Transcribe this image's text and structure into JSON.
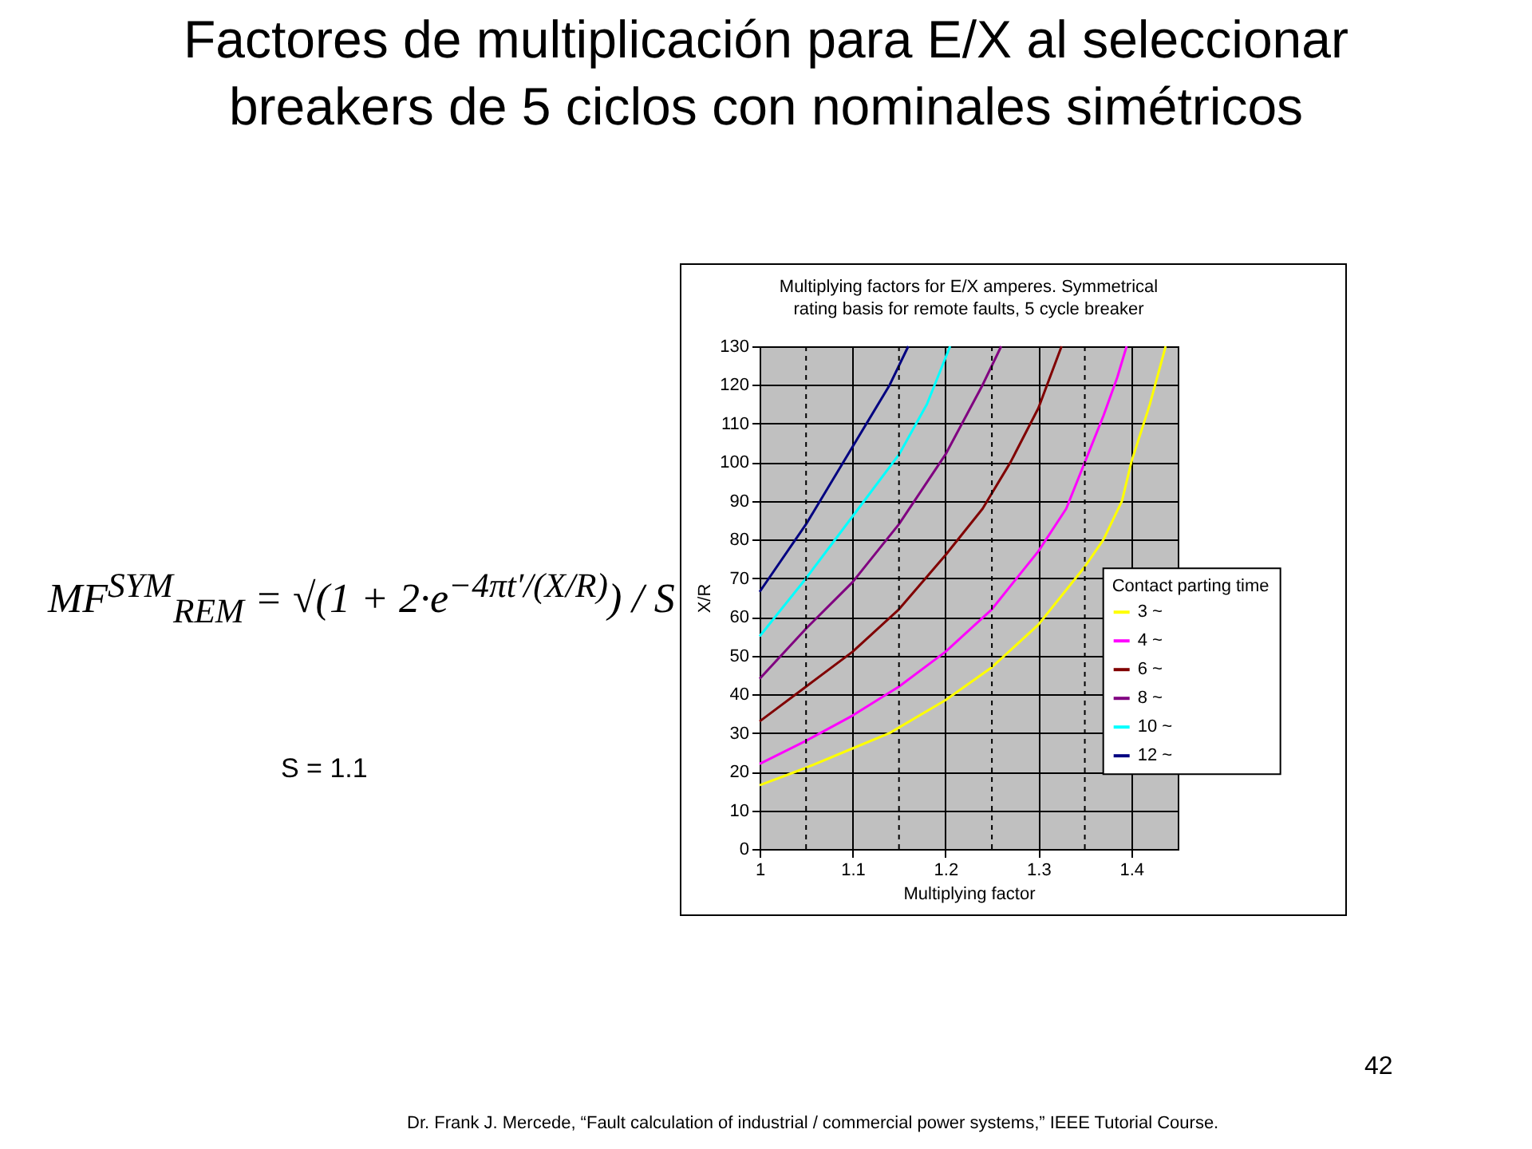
{
  "chart_data": {
    "type": "line",
    "title": "Factores de multiplicación para E/X al seleccionar breakers de 5 ciclos con nominales simétricos",
    "subtitle": "Multiplying factors for E/X amperes. Symmetrical rating basis for remote faults, 5 cycle breaker",
    "xlabel": "Multiplying factor",
    "ylabel": "X/R",
    "legend_title": "Contact parting time",
    "annotations": [
      "MF$^{SYM}$$_{REM}$ = √(1 + 2·e$^{−4πt′/(X/R)}$) / S",
      "S = 1.1",
      "42",
      "Dr. Frank J. Mercede, “Fault calculation of industrial / commercial power systems,” IEEE Tutorial Course."
    ],
    "xlim": [
      1,
      1.45
    ],
    "ylim": [
      0,
      130
    ],
    "xticks": [
      1,
      {
        "value": 1.05,
        "label": null
      },
      1.1,
      {
        "value": 1.15,
        "label": null
      },
      1.2,
      {
        "value": 1.25,
        "label": null
      },
      1.3,
      {
        "value": 1.35,
        "label": null
      },
      1.4
    ],
    "yticks": [
      0,
      10,
      20,
      30,
      40,
      50,
      60,
      70,
      80,
      90,
      100,
      110,
      120,
      130
    ],
    "grid": true,
    "legend": "bottom right",
    "series": [
      {
        "name": "3 ~",
        "color": "#ffff00",
        "x": [
          1,
          1.05,
          1.1,
          1.14,
          1.2,
          1.25,
          1.3,
          1.35,
          1.37,
          1.39,
          1.4,
          1.42,
          1.437
        ],
        "values": [
          16.5,
          21,
          26,
          30,
          38.5,
          47,
          58,
          73,
          80,
          90,
          100,
          115,
          130
        ]
      },
      {
        "name": "4 ~",
        "color": "#ff00ff",
        "x": [
          1,
          1.05,
          1.1,
          1.15,
          1.2,
          1.25,
          1.3,
          1.33,
          1.35,
          1.37,
          1.385,
          1.395
        ],
        "values": [
          22,
          28,
          34.5,
          42,
          51,
          62,
          77,
          88,
          100,
          112,
          122,
          130
        ]
      },
      {
        "name": "6 ~",
        "color": "#800000",
        "x": [
          1,
          1.05,
          1.1,
          1.15,
          1.2,
          1.24,
          1.27,
          1.3,
          1.325
        ],
        "values": [
          33,
          42,
          51,
          62,
          76,
          88,
          100,
          114,
          130
        ]
      },
      {
        "name": "8 ~",
        "color": "#800080",
        "x": [
          1,
          1.05,
          1.1,
          1.15,
          1.2,
          1.24,
          1.26
        ],
        "values": [
          44,
          57,
          69,
          84,
          102,
          120,
          130
        ]
      },
      {
        "name": "10 ~",
        "color": "#00ffff",
        "x": [
          1,
          1.05,
          1.1,
          1.15,
          1.18,
          1.205
        ],
        "values": [
          55,
          70,
          86,
          102,
          115,
          130
        ]
      },
      {
        "name": "12 ~",
        "color": "#000080",
        "x": [
          1,
          1.05,
          1.1,
          1.14,
          1.16
        ],
        "values": [
          66.5,
          84,
          104,
          120,
          130
        ]
      }
    ]
  }
}
